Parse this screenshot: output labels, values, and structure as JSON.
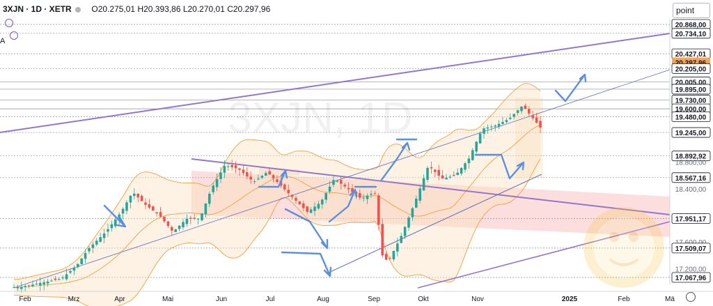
{
  "header": {
    "symbol": "3XJN · 1D · XETR",
    "ohlc": "O20.275,01 H20.393,86 L20.270,01 C20.297,96"
  },
  "indicator_label": "A",
  "scale_button": "point",
  "watermark": "3XJN, 1D",
  "colors": {
    "up": "#26a69a",
    "down": "#ef5350",
    "channel": "#9575cd",
    "trendline": "#5c6bc0",
    "bollinger": "#f0a040",
    "zone": "#f7b6b3",
    "arrows": "#5b8fe0",
    "last_price_bg": "#f5a55a"
  },
  "chart_data": {
    "type": "candlestick",
    "title": "3XJN · 1D · XETR",
    "x_ticks": [
      "Feb",
      "Mrz",
      "Apr",
      "Mai",
      "Jun",
      "Jul",
      "Aug",
      "Sep",
      "Okt",
      "Nov",
      "2025",
      "Feb",
      "Mä"
    ],
    "y_range": [
      16900,
      21000
    ],
    "horizontal_levels": [
      20868.0,
      20734.1,
      20427.01,
      20205.0,
      20005.0,
      19895.0,
      19730.0,
      19600.0,
      19480.0,
      19245.0,
      18892.92,
      18567.16,
      17951.17,
      17509.07,
      17067.96
    ],
    "axis_labels": [
      "20.868,00",
      "20.734,10",
      "20.427,01",
      "20.297,96",
      "20.205,00",
      "20.005,00",
      "19.895,00",
      "19.730,00",
      "19.600,00",
      "19.480,00",
      "19.245,00",
      "18.892,92",
      "18.800,00",
      "18.567,16",
      "18.400,00",
      "18.000,00",
      "17.951,17",
      "17.600,00",
      "17.509,07",
      "17.200,00",
      "17.067,96"
    ],
    "last_price": 20297.96,
    "ohlc_last": {
      "open": 20275.01,
      "high": 20393.86,
      "low": 20270.01,
      "close": 20297.96
    },
    "close_series": [
      {
        "date": "2024-01-29",
        "close": 16920
      },
      {
        "date": "2024-02-08",
        "close": 16980
      },
      {
        "date": "2024-02-20",
        "close": 17050
      },
      {
        "date": "2024-02-28",
        "close": 17250
      },
      {
        "date": "2024-03-05",
        "close": 17500
      },
      {
        "date": "2024-03-14",
        "close": 17750
      },
      {
        "date": "2024-03-22",
        "close": 18050
      },
      {
        "date": "2024-03-28",
        "close": 18350
      },
      {
        "date": "2024-04-04",
        "close": 18150
      },
      {
        "date": "2024-04-11",
        "close": 18000
      },
      {
        "date": "2024-04-18",
        "close": 17750
      },
      {
        "date": "2024-04-25",
        "close": 17950
      },
      {
        "date": "2024-05-02",
        "close": 17950
      },
      {
        "date": "2024-05-08",
        "close": 18400
      },
      {
        "date": "2024-05-15",
        "close": 18750
      },
      {
        "date": "2024-05-22",
        "close": 18700
      },
      {
        "date": "2024-05-30",
        "close": 18500
      },
      {
        "date": "2024-06-06",
        "close": 18650
      },
      {
        "date": "2024-06-13",
        "close": 18450
      },
      {
        "date": "2024-06-20",
        "close": 18250
      },
      {
        "date": "2024-06-27",
        "close": 18050
      },
      {
        "date": "2024-07-04",
        "close": 18200
      },
      {
        "date": "2024-07-11",
        "close": 18550
      },
      {
        "date": "2024-07-18",
        "close": 18400
      },
      {
        "date": "2024-07-25",
        "close": 18250
      },
      {
        "date": "2024-08-01",
        "close": 18350
      },
      {
        "date": "2024-08-05",
        "close": 17400
      },
      {
        "date": "2024-08-08",
        "close": 17300
      },
      {
        "date": "2024-08-15",
        "close": 17700
      },
      {
        "date": "2024-08-22",
        "close": 18200
      },
      {
        "date": "2024-08-29",
        "close": 18750
      },
      {
        "date": "2024-09-05",
        "close": 18550
      },
      {
        "date": "2024-09-12",
        "close": 18600
      },
      {
        "date": "2024-09-19",
        "close": 18850
      },
      {
        "date": "2024-09-26",
        "close": 19300
      },
      {
        "date": "2024-10-03",
        "close": 19350
      },
      {
        "date": "2024-10-10",
        "close": 19450
      },
      {
        "date": "2024-10-17",
        "close": 19650
      },
      {
        "date": "2024-10-24",
        "close": 19400
      },
      {
        "date": "2024-10-31",
        "close": 19150
      },
      {
        "date": "2024-11-07",
        "close": 19300
      },
      {
        "date": "2024-11-14",
        "close": 19100
      },
      {
        "date": "2024-11-21",
        "close": 19200
      },
      {
        "date": "2024-11-28",
        "close": 19500
      },
      {
        "date": "2024-12-04",
        "close": 20000
      },
      {
        "date": "2024-12-09",
        "close": 20350
      },
      {
        "date": "2024-12-11",
        "close": 20297.96
      }
    ],
    "grid": false,
    "legend": "none"
  }
}
